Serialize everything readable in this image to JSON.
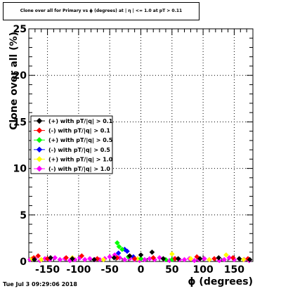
{
  "header": {
    "title": "Clone  over all for Primary vs ϕ (degrees) at | η | <= 1.0 at pT > 0.11"
  },
  "footer": {
    "timestamp": "Tue Jul  3 09:29:06 2018"
  },
  "chart_data": {
    "type": "scatter",
    "title": "Clone  over all for Primary vs ϕ (degrees) at | η | <= 1.0 at pT > 0.11",
    "xlabel": "ϕ (degrees)",
    "ylabel": "Clone  over all (%)",
    "xlim": [
      -180,
      180
    ],
    "ylim": [
      0,
      25
    ],
    "xticks": [
      -150,
      -100,
      -50,
      0,
      50,
      100,
      150
    ],
    "yticks": [
      0,
      5,
      10,
      15,
      20,
      25
    ],
    "grid": true,
    "legend_position": "left-middle",
    "series": [
      {
        "name": "(+) with pT/|q| > 0.1",
        "color": "#000000",
        "x": [
          -171,
          -145,
          -110,
          -75,
          -43,
          -18,
          0,
          18,
          36,
          60,
          95,
          125,
          158,
          175
        ],
        "y": [
          0.2,
          0.4,
          0.3,
          0.2,
          0.4,
          0.6,
          0.7,
          1.0,
          0.3,
          0.3,
          0.3,
          0.4,
          0.3,
          0.2
        ]
      },
      {
        "name": "(-) with pT/|q| > 0.1",
        "color": "#ff0000",
        "x": [
          -172,
          -165,
          -150,
          -120,
          -95,
          -70,
          -38,
          -10,
          20,
          55,
          90,
          118,
          148,
          172
        ],
        "y": [
          0.4,
          0.6,
          0.3,
          0.4,
          0.6,
          0.3,
          0.4,
          0.3,
          0.4,
          0.3,
          0.5,
          0.3,
          0.4,
          0.3
        ]
      },
      {
        "name": "(+) with pT/|q| > 0.5",
        "color": "#00ff00",
        "x": [
          -38,
          -35,
          -30,
          -20,
          0,
          40,
          50
        ],
        "y": [
          2.0,
          1.6,
          1.3,
          0.5,
          0.3,
          0.2,
          0.2
        ]
      },
      {
        "name": "(-) with pT/|q| > 0.5",
        "color": "#0000ff",
        "x": [
          -36,
          -26,
          -22,
          -12
        ],
        "y": [
          0.9,
          1.3,
          1.1,
          0.5
        ]
      },
      {
        "name": "(+) with pT/|q| > 1.0",
        "color": "#ffff00",
        "x": [
          -175,
          -160,
          -110,
          -60,
          -5,
          20,
          50,
          80,
          110,
          137,
          165
        ],
        "y": [
          0.3,
          0.2,
          0.4,
          0.2,
          0.3,
          0.4,
          0.8,
          0.3,
          0.2,
          0.7,
          0.2
        ]
      },
      {
        "name": "(-) with pT/|q| > 1.0",
        "color": "#ff00ff",
        "x": [
          -178,
          -170,
          -162,
          -154,
          -146,
          -138,
          -130,
          -122,
          -114,
          -106,
          -98,
          -90,
          -82,
          -74,
          -66,
          -58,
          -50,
          -42,
          -34,
          -26,
          -18,
          -10,
          -2,
          6,
          14,
          22,
          30,
          38,
          46,
          54,
          62,
          70,
          78,
          86,
          94,
          102,
          110,
          118,
          126,
          134,
          142,
          150,
          158,
          166,
          174
        ],
        "y": [
          0.2,
          0.3,
          0.1,
          0.3,
          0.2,
          0.4,
          0.2,
          0.3,
          0.1,
          0.2,
          0.4,
          0.2,
          0.3,
          0.2,
          0.2,
          0.3,
          0.5,
          0.7,
          0.4,
          0.2,
          0.3,
          0.2,
          0.1,
          0.2,
          0.3,
          0.2,
          0.4,
          0.2,
          0.1,
          0.3,
          0.2,
          0.2,
          0.3,
          0.1,
          0.2,
          0.3,
          0.2,
          0.3,
          0.1,
          0.2,
          0.4,
          0.2,
          0.3,
          0.2,
          0.1
        ]
      }
    ]
  }
}
